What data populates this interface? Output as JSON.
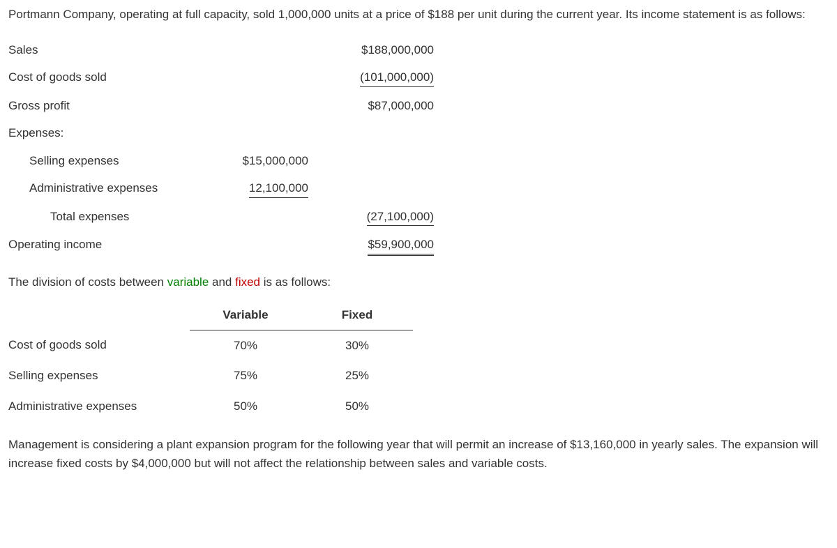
{
  "intro": "Portmann Company, operating at full capacity, sold 1,000,000 units at a price of $188 per unit during the current year. Its income statement is as follows:",
  "income_statement": {
    "rows": [
      {
        "label": "Sales",
        "indent": 0,
        "sub": "",
        "main": "$188,000,000",
        "sub_style": "",
        "main_style": ""
      },
      {
        "label": "Cost of goods sold",
        "indent": 0,
        "sub": "",
        "main": "(101,000,000)",
        "sub_style": "",
        "main_style": "underline"
      },
      {
        "label": "Gross profit",
        "indent": 0,
        "sub": "",
        "main": "$87,000,000",
        "sub_style": "",
        "main_style": ""
      },
      {
        "label": "Expenses:",
        "indent": 0,
        "sub": "",
        "main": "",
        "sub_style": "",
        "main_style": ""
      },
      {
        "label": "Selling expenses",
        "indent": 1,
        "sub": "$15,000,000",
        "main": "",
        "sub_style": "",
        "main_style": ""
      },
      {
        "label": "Administrative expenses",
        "indent": 1,
        "sub": "12,100,000",
        "main": "",
        "sub_style": "underline",
        "main_style": ""
      },
      {
        "label": "Total expenses",
        "indent": 2,
        "sub": "",
        "main": "(27,100,000)",
        "sub_style": "",
        "main_style": "underline"
      },
      {
        "label": "Operating income",
        "indent": 0,
        "sub": "",
        "main": "$59,900,000",
        "sub_style": "",
        "main_style": "double-underline"
      }
    ]
  },
  "division_text": {
    "prefix": "The division of costs between ",
    "variable_word": "variable",
    "mid": " and ",
    "fixed_word": "fixed",
    "suffix": " is as follows:"
  },
  "cost_table": {
    "headers": {
      "blank": "",
      "variable": "Variable",
      "fixed": "Fixed"
    },
    "rows": [
      {
        "label": "Cost of goods sold",
        "variable": "70%",
        "fixed": "30%"
      },
      {
        "label": "Selling expenses",
        "variable": "75%",
        "fixed": "25%"
      },
      {
        "label": "Administrative expenses",
        "variable": "50%",
        "fixed": "50%"
      }
    ]
  },
  "closing": "Management is considering a plant expansion program for the following year that will permit an increase of $13,160,000 in yearly sales. The expansion will increase fixed costs by $4,000,000 but will not affect the relationship between sales and variable costs.",
  "colors": {
    "text": "#333333",
    "link_green": "#008000",
    "link_red": "#c00000",
    "background": "#ffffff",
    "border": "#333333"
  }
}
